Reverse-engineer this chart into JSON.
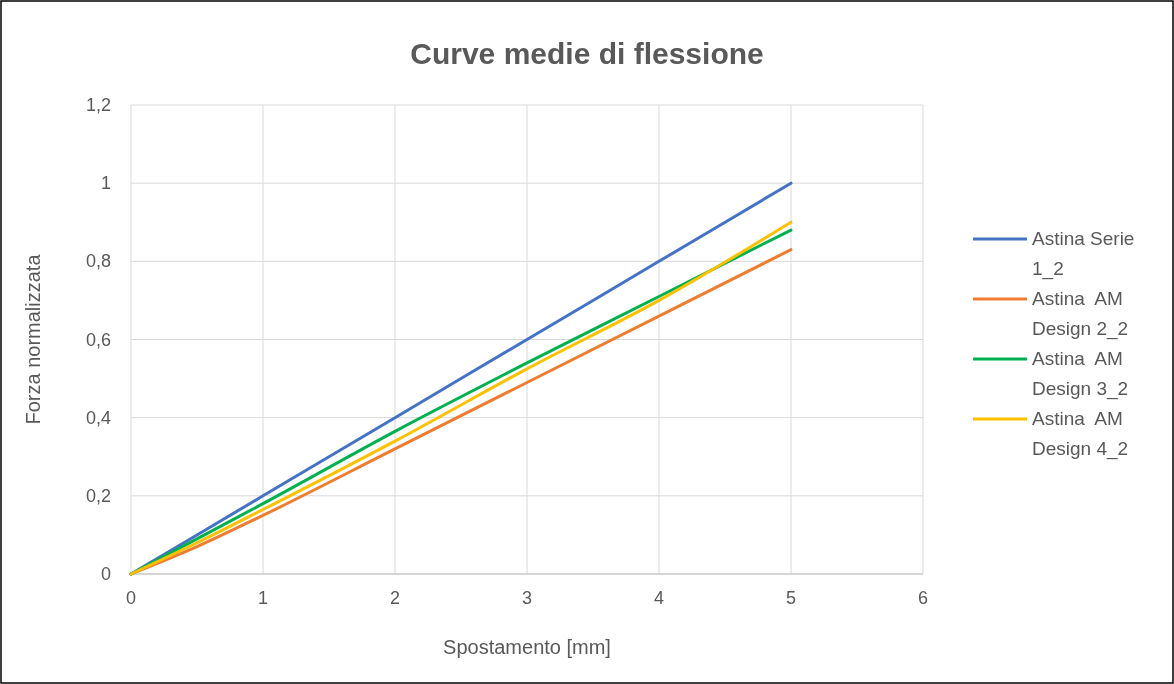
{
  "chart_data": {
    "type": "line",
    "title": "Curve medie di flessione",
    "xlabel": "Spostamento [mm]",
    "ylabel": "Forza normalizzata",
    "x": [
      0,
      0.5,
      1,
      2,
      3,
      4,
      5
    ],
    "series": [
      {
        "name": "Astina Serie 1_2",
        "color": "#4472c4",
        "values": [
          0,
          0.1,
          0.2,
          0.4,
          0.6,
          0.8,
          1.0
        ]
      },
      {
        "name": "Astina  AM Design 2_2",
        "color": "#ed7d31",
        "values": [
          0,
          0.07,
          0.15,
          0.32,
          0.49,
          0.66,
          0.83
        ]
      },
      {
        "name": "Astina  AM Design 3_2",
        "color": "#00b050",
        "values": [
          0,
          0.09,
          0.18,
          0.365,
          0.54,
          0.71,
          0.88
        ]
      },
      {
        "name": "Astina  AM Design 4_2",
        "color": "#ffc000",
        "values": [
          0,
          0.08,
          0.165,
          0.34,
          0.525,
          0.7,
          0.9
        ]
      }
    ],
    "xlim": [
      0,
      6
    ],
    "xticks": [
      0,
      1,
      2,
      3,
      4,
      5,
      6
    ],
    "ylim": [
      0,
      1.2
    ],
    "yticks": [
      0,
      {
        "value": 0.2,
        "label": "0,2"
      },
      {
        "value": 0.4,
        "label": "0,4"
      },
      {
        "value": 0.6,
        "label": "0,6"
      },
      {
        "value": 0.8,
        "label": "0,8"
      },
      1,
      {
        "value": 1.2,
        "label": "1,2"
      }
    ],
    "grid": true,
    "legend": "right",
    "marker": "none",
    "line_style": "solid"
  }
}
